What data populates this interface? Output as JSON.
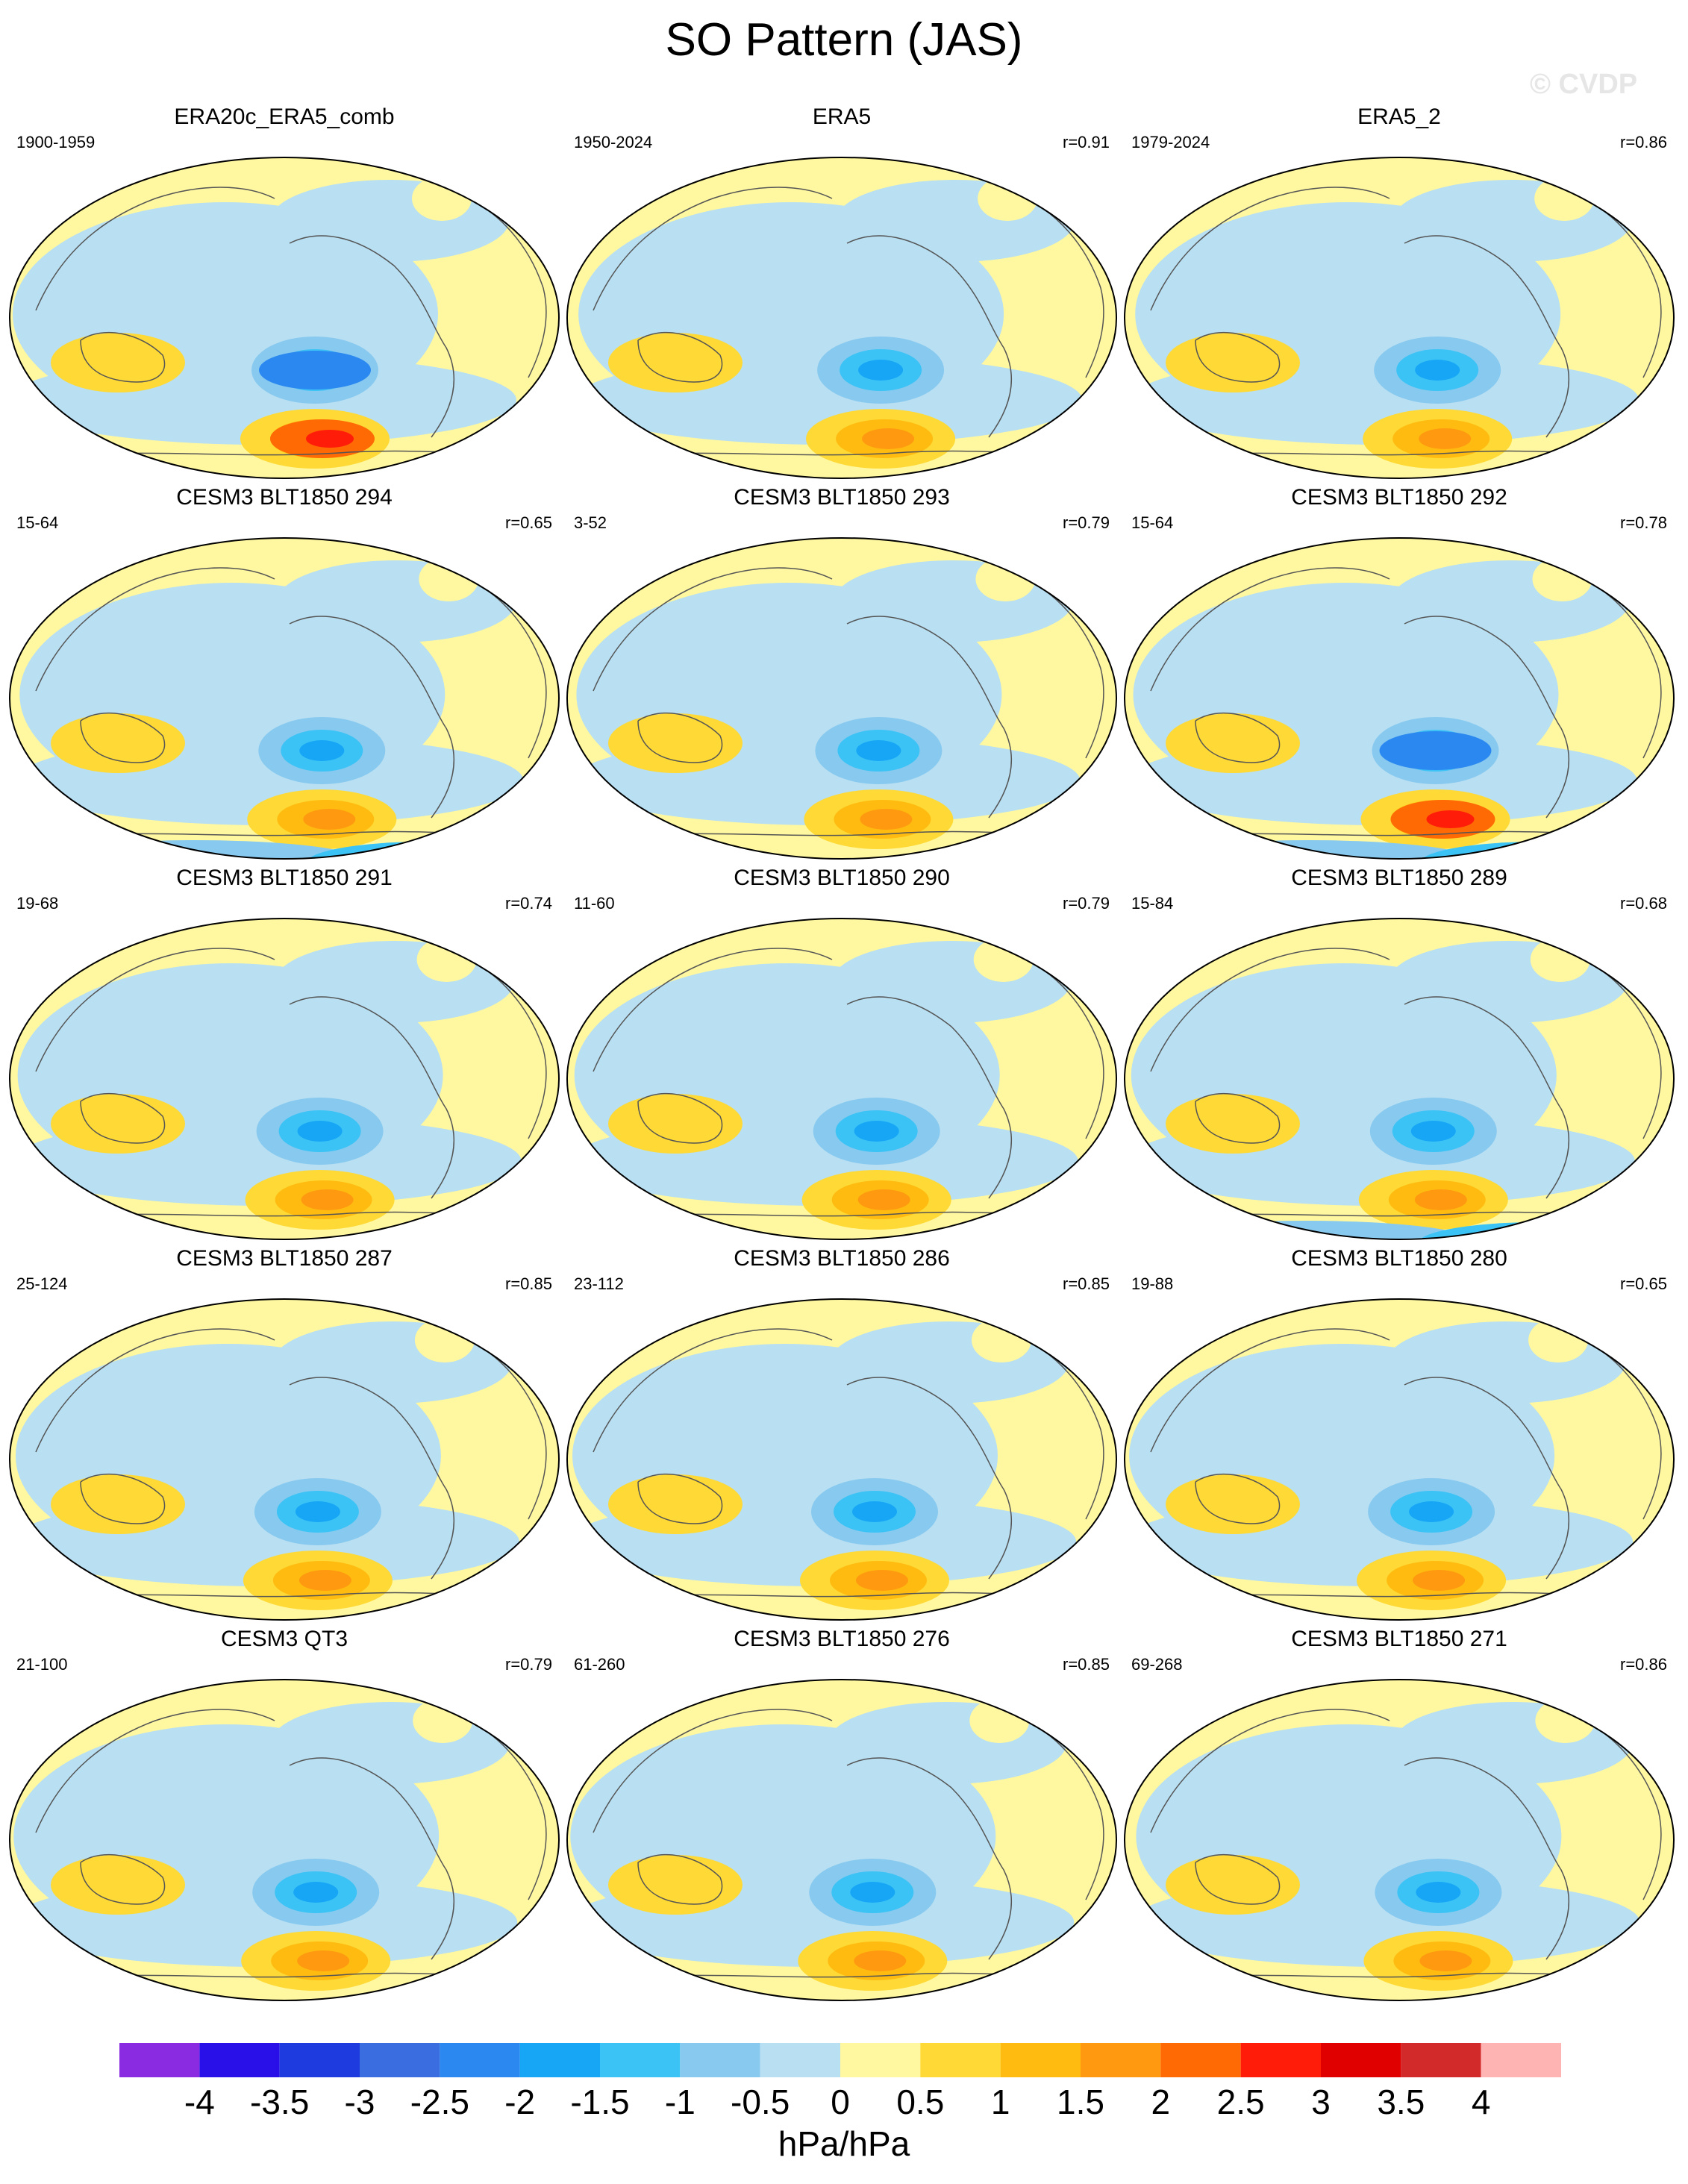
{
  "title": "SO Pattern (JAS)",
  "watermark": "© CVDP",
  "units": "hPa/hPa",
  "colorbar": {
    "levels": [
      "-4",
      "-3.5",
      "-3",
      "-2.5",
      "-2",
      "-1.5",
      "-1",
      "-0.5",
      "0",
      "0.5",
      "1",
      "1.5",
      "2",
      "2.5",
      "3",
      "3.5",
      "4"
    ],
    "colors": [
      "#8a2be2",
      "#2a10e8",
      "#1e3be0",
      "#3a6ee0",
      "#2a88f0",
      "#16a6f5",
      "#3cc3f5",
      "#88c9ef",
      "#b8dff2",
      "#fff8a0",
      "#ffd935",
      "#ffbb10",
      "#ff9a10",
      "#ff6a05",
      "#ff1d0a",
      "#e00000",
      "#d22a2a",
      "#ffb4b4"
    ]
  },
  "panels": [
    {
      "title": "ERA20c_ERA5_comb",
      "years": "1900-1959",
      "corr": ""
    },
    {
      "title": "ERA5",
      "years": "1950-2024",
      "corr": "r=0.91"
    },
    {
      "title": "ERA5_2",
      "years": "1979-2024",
      "corr": "r=0.86"
    },
    {
      "title": "CESM3 BLT1850 294",
      "years": "15-64",
      "corr": "r=0.65"
    },
    {
      "title": "CESM3 BLT1850 293",
      "years": "3-52",
      "corr": "r=0.79"
    },
    {
      "title": "CESM3 BLT1850 292",
      "years": "15-64",
      "corr": "r=0.78"
    },
    {
      "title": "CESM3 BLT1850 291",
      "years": "19-68",
      "corr": "r=0.74"
    },
    {
      "title": "CESM3 BLT1850 290",
      "years": "11-60",
      "corr": "r=0.79"
    },
    {
      "title": "CESM3 BLT1850 289",
      "years": "15-84",
      "corr": "r=0.68"
    },
    {
      "title": "CESM3 BLT1850 287",
      "years": "25-124",
      "corr": "r=0.85"
    },
    {
      "title": "CESM3 BLT1850 286",
      "years": "23-112",
      "corr": "r=0.85"
    },
    {
      "title": "CESM3 BLT1850 280",
      "years": "19-88",
      "corr": "r=0.65"
    },
    {
      "title": "CESM3 QT3",
      "years": "21-100",
      "corr": "r=0.79"
    },
    {
      "title": "CESM3 BLT1850 276",
      "years": "61-260",
      "corr": "r=0.85"
    },
    {
      "title": "CESM3 BLT1850 271",
      "years": "69-268",
      "corr": "r=0.86"
    }
  ]
}
